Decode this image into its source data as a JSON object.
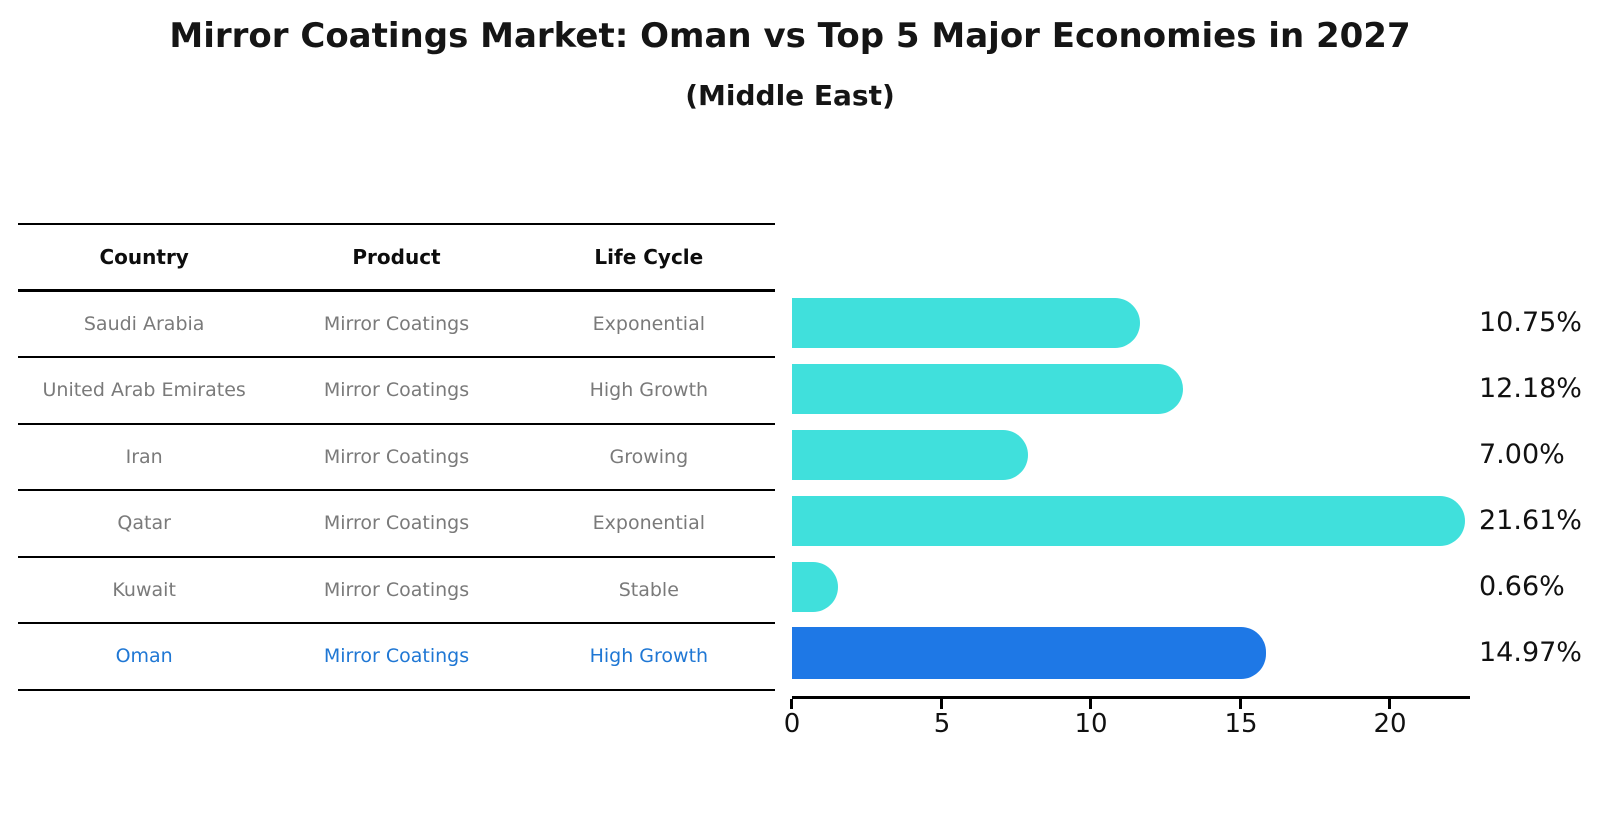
{
  "title": "Mirror Coatings Market: Oman vs Top 5 Major Economies in 2027",
  "subtitle": "(Middle East)",
  "table": {
    "headers": [
      "Country",
      "Product",
      "Life Cycle"
    ],
    "rows": [
      {
        "country": "Saudi Arabia",
        "product": "Mirror Coatings",
        "life_cycle": "Exponential"
      },
      {
        "country": "United Arab Emirates",
        "product": "Mirror Coatings",
        "life_cycle": "High Growth"
      },
      {
        "country": "Iran",
        "product": "Mirror Coatings",
        "life_cycle": "Growing"
      },
      {
        "country": "Qatar",
        "product": "Mirror Coatings",
        "life_cycle": "Exponential"
      },
      {
        "country": "Kuwait",
        "product": "Mirror Coatings",
        "life_cycle": "Stable"
      },
      {
        "country": "Oman",
        "product": "Mirror Coatings",
        "life_cycle": "High Growth"
      }
    ]
  },
  "chart_data": {
    "type": "bar",
    "orientation": "horizontal",
    "title": "Mirror Coatings Market: Oman vs Top 5 Major Economies in 2027",
    "subtitle": "(Middle East)",
    "categories": [
      "Saudi Arabia",
      "United Arab Emirates",
      "Iran",
      "Qatar",
      "Kuwait",
      "Oman"
    ],
    "values": [
      10.75,
      12.18,
      7.0,
      21.61,
      0.66,
      14.97
    ],
    "value_labels": [
      "10.75%",
      "12.18%",
      "7.00%",
      "21.61%",
      "0.66%",
      "14.97%"
    ],
    "unit": "%",
    "xticks": [
      "0",
      "5",
      "10",
      "15",
      "20"
    ],
    "xlim": [
      0,
      22.6
    ],
    "grid": false,
    "legend": "none",
    "bar_color": "#40e0dc",
    "highlight_color": "#1e78e6",
    "highlight_index": 5,
    "highlight_category": "Oman",
    "highlight_text_color": "#1f77d4"
  }
}
